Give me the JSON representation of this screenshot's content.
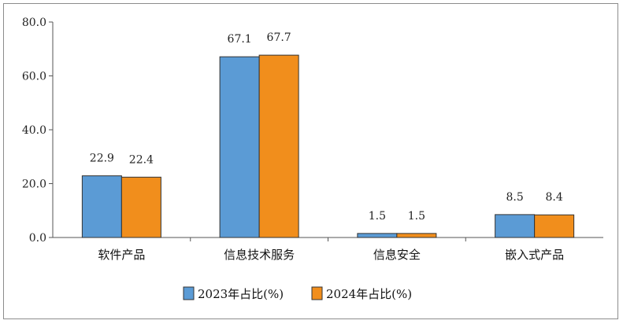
{
  "chart_data": {
    "type": "bar",
    "categories": [
      "软件产品",
      "信息技术服务",
      "信息安全",
      "嵌入式产品"
    ],
    "series": [
      {
        "name": "2023年占比(%)",
        "values": [
          22.9,
          67.1,
          1.5,
          8.5
        ],
        "color": "#5b9bd5"
      },
      {
        "name": "2024年占比(%)",
        "values": [
          22.4,
          67.7,
          1.5,
          8.4
        ],
        "color": "#f18e1c"
      }
    ],
    "yticks": [
      "0.0",
      "20.0",
      "40.0",
      "60.0",
      "80.0"
    ],
    "ylim": [
      0,
      80
    ],
    "title": "",
    "xlabel": "",
    "ylabel": "",
    "grid": false,
    "legend": "bottom-center",
    "data_labels": true
  }
}
